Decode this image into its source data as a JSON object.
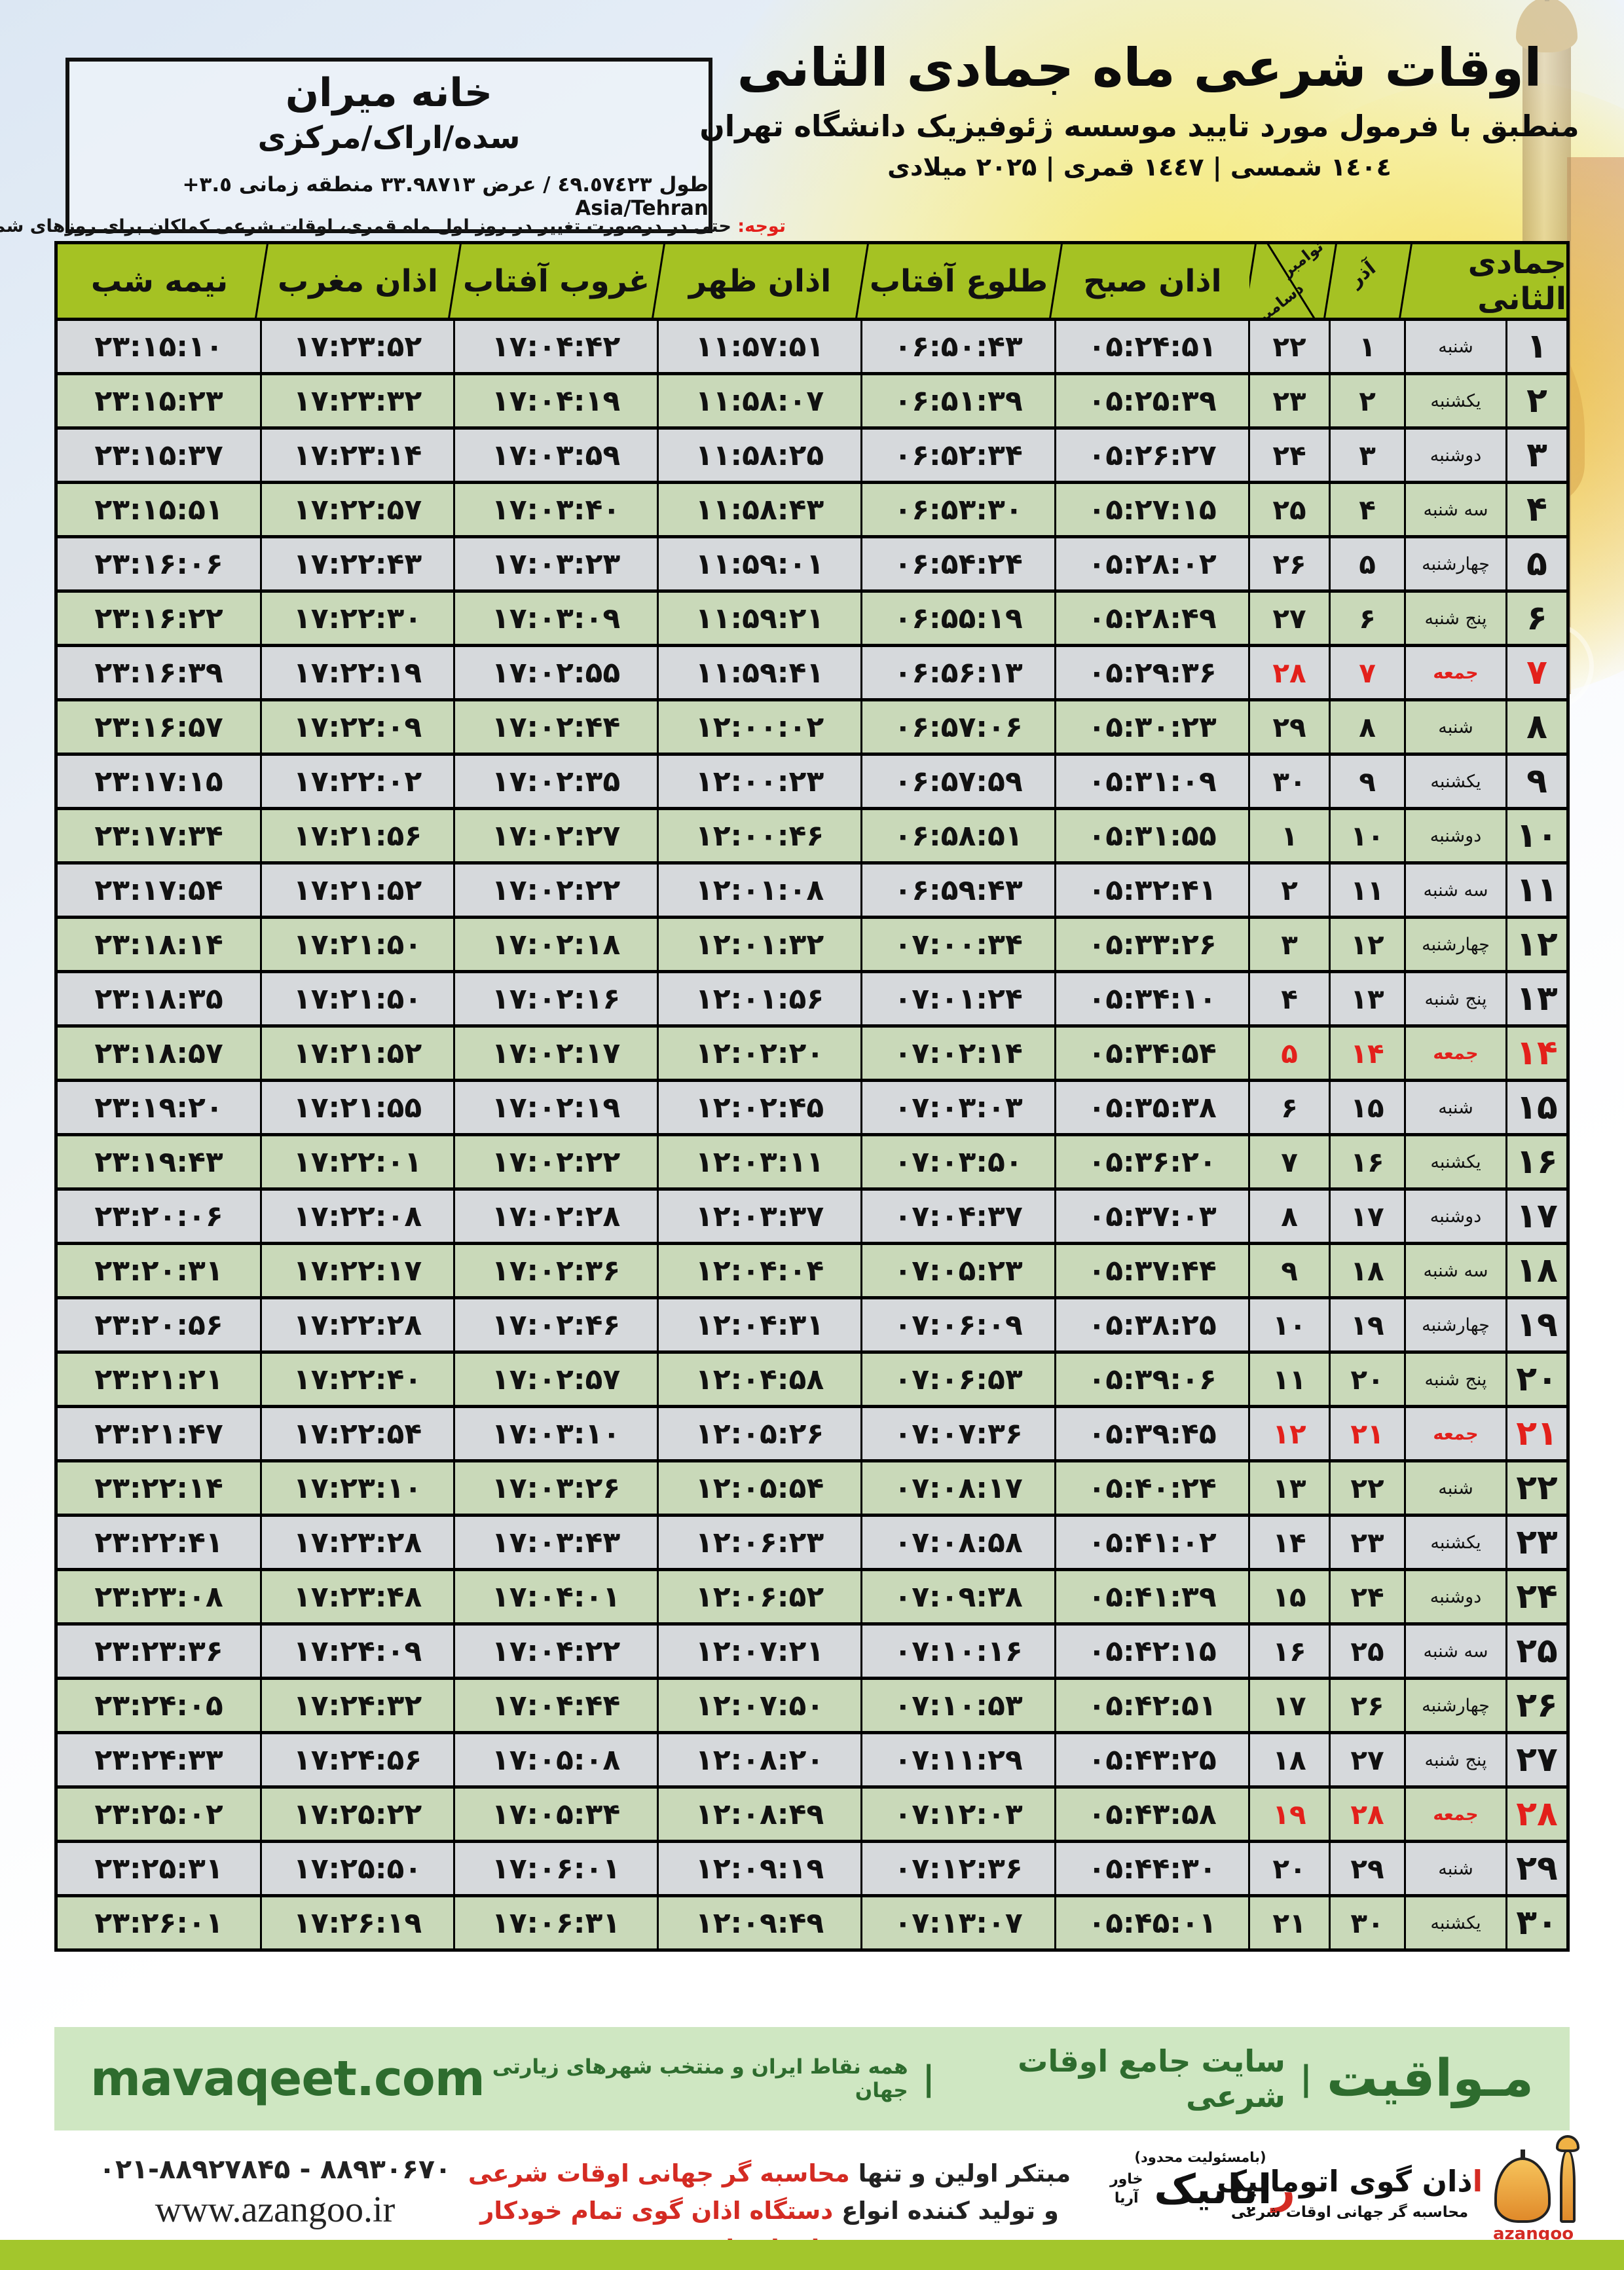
{
  "title_block": {
    "line1": "اوقات شرعی ماه جمادی الثانی",
    "line2": "منطبق با فرمول مورد تایید موسسه ژئوفیزیک دانشگاه تهران",
    "line3": "۱٤۰٤ شمسی | ۱٤٤۷ قمری | ۲۰۲۵ میلادی"
  },
  "location_box": {
    "name": "خانه میران",
    "region": "سده/اراک/مرکزی",
    "coords": "طول ٤٩.٥٧٤٢٣ / عرض ٣٣.٩٨٧١٣ منطقه زمانی ٣.٥+ Asia/Tehran"
  },
  "notice": {
    "label": "توجه:",
    "text": " حتی در درصورت تغییر در روز اول ماه قمری، اوقات شرعی کماکان برای روزهای شمسی و میلادی معتبر است."
  },
  "colors": {
    "header_green": "#a5c223",
    "row_green": "#d6e7c5",
    "row_light": "#f4f7fa",
    "friday_red": "#e3201b",
    "footer_bar_bg": "#cfe7c2",
    "footer_text_green": "#2e6c2e",
    "bottom_bar_green": "#a3c62c",
    "logo_orange": "#eda23c"
  },
  "table": {
    "month_header": "جمادی الثانی",
    "col_azar": "آذر",
    "col_nov": "نوامبر",
    "col_dec": "دسامبر",
    "col_sobh": "اذان صبح",
    "col_tolu": "طلوع آفتاب",
    "col_zohr": "اذان ظهر",
    "col_ghorub": "غروب آفتاب",
    "col_maghreb": "اذان مغرب",
    "col_nime": "نیمه شب",
    "rows": [
      {
        "d": "۱",
        "wd": "شنبه",
        "azar": "۱",
        "greg": "۲۲",
        "sobh": "۰۵:۲۴:۵۱",
        "tolu": "۰۶:۵۰:۴۳",
        "zohr": "۱۱:۵۷:۵۱",
        "ghorub": "۱۷:۰۴:۴۲",
        "maghreb": "۱۷:۲۳:۵۲",
        "nime": "۲۳:۱۵:۱۰",
        "friday": false
      },
      {
        "d": "۲",
        "wd": "یکشنبه",
        "azar": "۲",
        "greg": "۲۳",
        "sobh": "۰۵:۲۵:۳۹",
        "tolu": "۰۶:۵۱:۳۹",
        "zohr": "۱۱:۵۸:۰۷",
        "ghorub": "۱۷:۰۴:۱۹",
        "maghreb": "۱۷:۲۳:۳۲",
        "nime": "۲۳:۱۵:۲۳",
        "friday": false
      },
      {
        "d": "۳",
        "wd": "دوشنبه",
        "azar": "۳",
        "greg": "۲۴",
        "sobh": "۰۵:۲۶:۲۷",
        "tolu": "۰۶:۵۲:۳۴",
        "zohr": "۱۱:۵۸:۲۵",
        "ghorub": "۱۷:۰۳:۵۹",
        "maghreb": "۱۷:۲۳:۱۴",
        "nime": "۲۳:۱۵:۳۷",
        "friday": false
      },
      {
        "d": "۴",
        "wd": "سه شنبه",
        "azar": "۴",
        "greg": "۲۵",
        "sobh": "۰۵:۲۷:۱۵",
        "tolu": "۰۶:۵۳:۳۰",
        "zohr": "۱۱:۵۸:۴۳",
        "ghorub": "۱۷:۰۳:۴۰",
        "maghreb": "۱۷:۲۲:۵۷",
        "nime": "۲۳:۱۵:۵۱",
        "friday": false
      },
      {
        "d": "۵",
        "wd": "چهارشنبه",
        "azar": "۵",
        "greg": "۲۶",
        "sobh": "۰۵:۲۸:۰۲",
        "tolu": "۰۶:۵۴:۲۴",
        "zohr": "۱۱:۵۹:۰۱",
        "ghorub": "۱۷:۰۳:۲۳",
        "maghreb": "۱۷:۲۲:۴۳",
        "nime": "۲۳:۱۶:۰۶",
        "friday": false
      },
      {
        "d": "۶",
        "wd": "پنج شنبه",
        "azar": "۶",
        "greg": "۲۷",
        "sobh": "۰۵:۲۸:۴۹",
        "tolu": "۰۶:۵۵:۱۹",
        "zohr": "۱۱:۵۹:۲۱",
        "ghorub": "۱۷:۰۳:۰۹",
        "maghreb": "۱۷:۲۲:۳۰",
        "nime": "۲۳:۱۶:۲۲",
        "friday": false
      },
      {
        "d": "۷",
        "wd": "جمعه",
        "azar": "۷",
        "greg": "۲۸",
        "sobh": "۰۵:۲۹:۳۶",
        "tolu": "۰۶:۵۶:۱۳",
        "zohr": "۱۱:۵۹:۴۱",
        "ghorub": "۱۷:۰۲:۵۵",
        "maghreb": "۱۷:۲۲:۱۹",
        "nime": "۲۳:۱۶:۳۹",
        "friday": true
      },
      {
        "d": "۸",
        "wd": "شنبه",
        "azar": "۸",
        "greg": "۲۹",
        "sobh": "۰۵:۳۰:۲۳",
        "tolu": "۰۶:۵۷:۰۶",
        "zohr": "۱۲:۰۰:۰۲",
        "ghorub": "۱۷:۰۲:۴۴",
        "maghreb": "۱۷:۲۲:۰۹",
        "nime": "۲۳:۱۶:۵۷",
        "friday": false
      },
      {
        "d": "۹",
        "wd": "یکشنبه",
        "azar": "۹",
        "greg": "۳۰",
        "sobh": "۰۵:۳۱:۰۹",
        "tolu": "۰۶:۵۷:۵۹",
        "zohr": "۱۲:۰۰:۲۳",
        "ghorub": "۱۷:۰۲:۳۵",
        "maghreb": "۱۷:۲۲:۰۲",
        "nime": "۲۳:۱۷:۱۵",
        "friday": false
      },
      {
        "d": "۱۰",
        "wd": "دوشنبه",
        "azar": "۱۰",
        "greg": "۱",
        "sobh": "۰۵:۳۱:۵۵",
        "tolu": "۰۶:۵۸:۵۱",
        "zohr": "۱۲:۰۰:۴۶",
        "ghorub": "۱۷:۰۲:۲۷",
        "maghreb": "۱۷:۲۱:۵۶",
        "nime": "۲۳:۱۷:۳۴",
        "friday": false
      },
      {
        "d": "۱۱",
        "wd": "سه شنبه",
        "azar": "۱۱",
        "greg": "۲",
        "sobh": "۰۵:۳۲:۴۱",
        "tolu": "۰۶:۵۹:۴۳",
        "zohr": "۱۲:۰۱:۰۸",
        "ghorub": "۱۷:۰۲:۲۲",
        "maghreb": "۱۷:۲۱:۵۲",
        "nime": "۲۳:۱۷:۵۴",
        "friday": false
      },
      {
        "d": "۱۲",
        "wd": "چهارشنبه",
        "azar": "۱۲",
        "greg": "۳",
        "sobh": "۰۵:۳۳:۲۶",
        "tolu": "۰۷:۰۰:۳۴",
        "zohr": "۱۲:۰۱:۳۲",
        "ghorub": "۱۷:۰۲:۱۸",
        "maghreb": "۱۷:۲۱:۵۰",
        "nime": "۲۳:۱۸:۱۴",
        "friday": false
      },
      {
        "d": "۱۳",
        "wd": "پنج شنبه",
        "azar": "۱۳",
        "greg": "۴",
        "sobh": "۰۵:۳۴:۱۰",
        "tolu": "۰۷:۰۱:۲۴",
        "zohr": "۱۲:۰۱:۵۶",
        "ghorub": "۱۷:۰۲:۱۶",
        "maghreb": "۱۷:۲۱:۵۰",
        "nime": "۲۳:۱۸:۳۵",
        "friday": false
      },
      {
        "d": "۱۴",
        "wd": "جمعه",
        "azar": "۱۴",
        "greg": "۵",
        "sobh": "۰۵:۳۴:۵۴",
        "tolu": "۰۷:۰۲:۱۴",
        "zohr": "۱۲:۰۲:۲۰",
        "ghorub": "۱۷:۰۲:۱۷",
        "maghreb": "۱۷:۲۱:۵۲",
        "nime": "۲۳:۱۸:۵۷",
        "friday": true
      },
      {
        "d": "۱۵",
        "wd": "شنبه",
        "azar": "۱۵",
        "greg": "۶",
        "sobh": "۰۵:۳۵:۳۸",
        "tolu": "۰۷:۰۳:۰۳",
        "zohr": "۱۲:۰۲:۴۵",
        "ghorub": "۱۷:۰۲:۱۹",
        "maghreb": "۱۷:۲۱:۵۵",
        "nime": "۲۳:۱۹:۲۰",
        "friday": false
      },
      {
        "d": "۱۶",
        "wd": "یکشنبه",
        "azar": "۱۶",
        "greg": "۷",
        "sobh": "۰۵:۳۶:۲۰",
        "tolu": "۰۷:۰۳:۵۰",
        "zohr": "۱۲:۰۳:۱۱",
        "ghorub": "۱۷:۰۲:۲۲",
        "maghreb": "۱۷:۲۲:۰۱",
        "nime": "۲۳:۱۹:۴۳",
        "friday": false
      },
      {
        "d": "۱۷",
        "wd": "دوشنبه",
        "azar": "۱۷",
        "greg": "۸",
        "sobh": "۰۵:۳۷:۰۳",
        "tolu": "۰۷:۰۴:۳۷",
        "zohr": "۱۲:۰۳:۳۷",
        "ghorub": "۱۷:۰۲:۲۸",
        "maghreb": "۱۷:۲۲:۰۸",
        "nime": "۲۳:۲۰:۰۶",
        "friday": false
      },
      {
        "d": "۱۸",
        "wd": "سه شنبه",
        "azar": "۱۸",
        "greg": "۹",
        "sobh": "۰۵:۳۷:۴۴",
        "tolu": "۰۷:۰۵:۲۳",
        "zohr": "۱۲:۰۴:۰۴",
        "ghorub": "۱۷:۰۲:۳۶",
        "maghreb": "۱۷:۲۲:۱۷",
        "nime": "۲۳:۲۰:۳۱",
        "friday": false
      },
      {
        "d": "۱۹",
        "wd": "چهارشنبه",
        "azar": "۱۹",
        "greg": "۱۰",
        "sobh": "۰۵:۳۸:۲۵",
        "tolu": "۰۷:۰۶:۰۹",
        "zohr": "۱۲:۰۴:۳۱",
        "ghorub": "۱۷:۰۲:۴۶",
        "maghreb": "۱۷:۲۲:۲۸",
        "nime": "۲۳:۲۰:۵۶",
        "friday": false
      },
      {
        "d": "۲۰",
        "wd": "پنج شنبه",
        "azar": "۲۰",
        "greg": "۱۱",
        "sobh": "۰۵:۳۹:۰۶",
        "tolu": "۰۷:۰۶:۵۳",
        "zohr": "۱۲:۰۴:۵۸",
        "ghorub": "۱۷:۰۲:۵۷",
        "maghreb": "۱۷:۲۲:۴۰",
        "nime": "۲۳:۲۱:۲۱",
        "friday": false
      },
      {
        "d": "۲۱",
        "wd": "جمعه",
        "azar": "۲۱",
        "greg": "۱۲",
        "sobh": "۰۵:۳۹:۴۵",
        "tolu": "۰۷:۰۷:۳۶",
        "zohr": "۱۲:۰۵:۲۶",
        "ghorub": "۱۷:۰۳:۱۰",
        "maghreb": "۱۷:۲۲:۵۴",
        "nime": "۲۳:۲۱:۴۷",
        "friday": true
      },
      {
        "d": "۲۲",
        "wd": "شنبه",
        "azar": "۲۲",
        "greg": "۱۳",
        "sobh": "۰۵:۴۰:۲۴",
        "tolu": "۰۷:۰۸:۱۷",
        "zohr": "۱۲:۰۵:۵۴",
        "ghorub": "۱۷:۰۳:۲۶",
        "maghreb": "۱۷:۲۳:۱۰",
        "nime": "۲۳:۲۲:۱۴",
        "friday": false
      },
      {
        "d": "۲۳",
        "wd": "یکشنبه",
        "azar": "۲۳",
        "greg": "۱۴",
        "sobh": "۰۵:۴۱:۰۲",
        "tolu": "۰۷:۰۸:۵۸",
        "zohr": "۱۲:۰۶:۲۳",
        "ghorub": "۱۷:۰۳:۴۳",
        "maghreb": "۱۷:۲۳:۲۸",
        "nime": "۲۳:۲۲:۴۱",
        "friday": false
      },
      {
        "d": "۲۴",
        "wd": "دوشنبه",
        "azar": "۲۴",
        "greg": "۱۵",
        "sobh": "۰۵:۴۱:۳۹",
        "tolu": "۰۷:۰۹:۳۸",
        "zohr": "۱۲:۰۶:۵۲",
        "ghorub": "۱۷:۰۴:۰۱",
        "maghreb": "۱۷:۲۳:۴۸",
        "nime": "۲۳:۲۳:۰۸",
        "friday": false
      },
      {
        "d": "۲۵",
        "wd": "سه شنبه",
        "azar": "۲۵",
        "greg": "۱۶",
        "sobh": "۰۵:۴۲:۱۵",
        "tolu": "۰۷:۱۰:۱۶",
        "zohr": "۱۲:۰۷:۲۱",
        "ghorub": "۱۷:۰۴:۲۲",
        "maghreb": "۱۷:۲۴:۰۹",
        "nime": "۲۳:۲۳:۳۶",
        "friday": false
      },
      {
        "d": "۲۶",
        "wd": "چهارشنبه",
        "azar": "۲۶",
        "greg": "۱۷",
        "sobh": "۰۵:۴۲:۵۱",
        "tolu": "۰۷:۱۰:۵۳",
        "zohr": "۱۲:۰۷:۵۰",
        "ghorub": "۱۷:۰۴:۴۴",
        "maghreb": "۱۷:۲۴:۳۲",
        "nime": "۲۳:۲۴:۰۵",
        "friday": false
      },
      {
        "d": "۲۷",
        "wd": "پنج شنبه",
        "azar": "۲۷",
        "greg": "۱۸",
        "sobh": "۰۵:۴۳:۲۵",
        "tolu": "۰۷:۱۱:۲۹",
        "zohr": "۱۲:۰۸:۲۰",
        "ghorub": "۱۷:۰۵:۰۸",
        "maghreb": "۱۷:۲۴:۵۶",
        "nime": "۲۳:۲۴:۳۳",
        "friday": false
      },
      {
        "d": "۲۸",
        "wd": "جمعه",
        "azar": "۲۸",
        "greg": "۱۹",
        "sobh": "۰۵:۴۳:۵۸",
        "tolu": "۰۷:۱۲:۰۳",
        "zohr": "۱۲:۰۸:۴۹",
        "ghorub": "۱۷:۰۵:۳۴",
        "maghreb": "۱۷:۲۵:۲۲",
        "nime": "۲۳:۲۵:۰۲",
        "friday": true
      },
      {
        "d": "۲۹",
        "wd": "شنبه",
        "azar": "۲۹",
        "greg": "۲۰",
        "sobh": "۰۵:۴۴:۳۰",
        "tolu": "۰۷:۱۲:۳۶",
        "zohr": "۱۲:۰۹:۱۹",
        "ghorub": "۱۷:۰۶:۰۱",
        "maghreb": "۱۷:۲۵:۵۰",
        "nime": "۲۳:۲۵:۳۱",
        "friday": false
      },
      {
        "d": "۳۰",
        "wd": "یکشنبه",
        "azar": "۳۰",
        "greg": "۲۱",
        "sobh": "۰۵:۴۵:۰۱",
        "tolu": "۰۷:۱۳:۰۷",
        "zohr": "۱۲:۰۹:۴۹",
        "ghorub": "۱۷:۰۶:۳۱",
        "maghreb": "۱۷:۲۶:۱۹",
        "nime": "۲۳:۲۶:۰۱",
        "friday": false
      }
    ]
  },
  "footer_bar": {
    "brand": "مـواقیت",
    "divider": "|",
    "middle": "سایت جامع اوقات شرعی",
    "tail": "همه نقاط ایران و منتخب شهرهای زیارتی جهان",
    "site": "mavaqeet.com"
  },
  "bottom": {
    "phones": "۰۲۱-۸۸۹۲۷۸۴۵ - ۸۸۹۳۰۶۷۰",
    "site": "www.azangoo.ir",
    "line1_black": "مبتکر اولین و تنها ",
    "line1_red": "محاسبه گر جهانی اوقات شرعی",
    "line2_black": "و تولید کننده انواع ",
    "line2_red": "دستگاه اذان گوی تمام خودکار ماهواره ای",
    "rayanik_top": "(بامسئولیت محدود)",
    "rayanik_initial": "ر",
    "rayanik_rest": "ایانیک",
    "rayanik_sub": "خاور آریا",
    "azangoo_fa_initial": "ا",
    "azangoo_fa_rest": "ذان گوی اتوماتیک",
    "azangoo_sub": "محاسبه گر جهانی اوقات شرعی",
    "azangoo_en": "azangoo"
  }
}
